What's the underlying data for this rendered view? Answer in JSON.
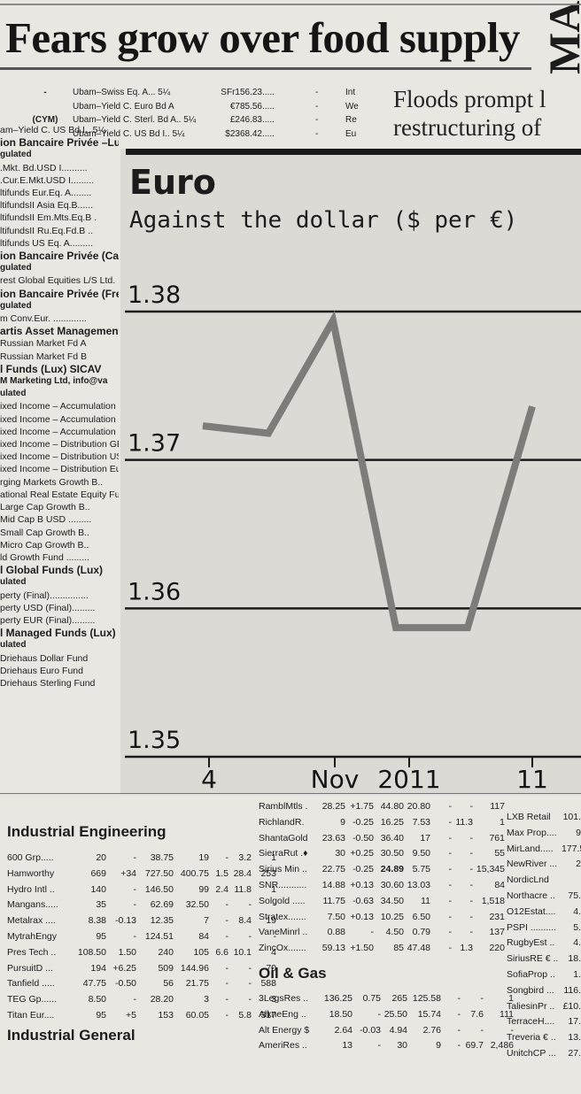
{
  "page": {
    "headline": "Fears grow over food supply",
    "masthead_fragment": "MA",
    "right_headline_line1": "Floods prompt l",
    "right_headline_line2": "restructuring of"
  },
  "funds_top": [
    {
      "dash": "-",
      "name": "Ubam–Swiss Eq. A... 5¼",
      "price": "SFr156.23",
      "dots": ".....",
      "flag": "-",
      "tail": "Int"
    },
    {
      "dash": "",
      "name": "Ubam–Yield C. Euro Bd A",
      "price": "€785.56",
      "dots": ".....",
      "flag": "-",
      "tail": "We"
    },
    {
      "dash": "(CYM)",
      "name": "Ubam–Yield C. Sterl. Bd A.. 5¼",
      "price": "£246.83",
      "dots": ".....",
      "flag": "-",
      "tail": "Re"
    },
    {
      "dash": "",
      "name": "Ubam–Yield C. US Bd I.. 5¼",
      "price": "$2368.42",
      "dots": ".....",
      "flag": "-",
      "tail": "Eu"
    }
  ],
  "funds_left": [
    {
      "t": "am–Yield C. US Bd I.. 5¼",
      "c": ""
    },
    {
      "t": "ion Bancaire Privée –Lu",
      "c": "h"
    },
    {
      "t": "gulated",
      "c": "s"
    },
    {
      "t": ".Mkt. Bd.USD I..........",
      "c": ""
    },
    {
      "t": ".Cur.E.Mkt.USD I.........",
      "c": ""
    },
    {
      "t": "ltifunds Eur.Eq. A........",
      "c": ""
    },
    {
      "t": "ltifundsII Asia Eq.B......",
      "c": ""
    },
    {
      "t": "ltifundsII Em.Mts.Eq.B .",
      "c": ""
    },
    {
      "t": "ltifundsII Ru.Eq.Fd.B ..",
      "c": ""
    },
    {
      "t": "ltifunds US Eq. A.........",
      "c": ""
    },
    {
      "t": "ion Bancaire Privée (Cay",
      "c": "h"
    },
    {
      "t": "gulated",
      "c": "s"
    },
    {
      "t": "rest Global Equities L/S Ltd.",
      "c": ""
    },
    {
      "t": "ion Bancaire Privée (Fre",
      "c": "h"
    },
    {
      "t": "gulated",
      "c": "s"
    },
    {
      "t": "m Conv.Eur. .............",
      "c": ""
    },
    {
      "t": "artis Asset Management",
      "c": "h"
    },
    {
      "t": "Russian Market Fd A",
      "c": ""
    },
    {
      "t": "Russian Market Fd B",
      "c": ""
    },
    {
      "t": "l Funds (Lux) SICAV",
      "c": "h"
    },
    {
      "t": "M Marketing Ltd, info@va",
      "c": "s"
    },
    {
      "t": "ulated",
      "c": "s"
    },
    {
      "t": "ixed Income – Accumulation GBP",
      "c": ""
    },
    {
      "t": "ixed Income – Accumulation USD",
      "c": ""
    },
    {
      "t": "ixed Income – Accumulation Euro",
      "c": ""
    },
    {
      "t": "ixed Income – Distribution GBP ..",
      "c": ""
    },
    {
      "t": "ixed Income – Distribution USD ..",
      "c": ""
    },
    {
      "t": "ixed Income – Distribution Euro..",
      "c": ""
    },
    {
      "t": "rging Markets Growth B..",
      "c": ""
    },
    {
      "t": "ational Real Estate Equity Fund",
      "c": ""
    },
    {
      "t": "Large Cap Growth B..",
      "c": ""
    },
    {
      "t": "Mid Cap B USD .........",
      "c": ""
    },
    {
      "t": "Small Cap Growth B..",
      "c": ""
    },
    {
      "t": "Micro Cap Growth B..",
      "c": ""
    },
    {
      "t": "ld Growth Fund .........",
      "c": ""
    },
    {
      "t": "l Global Funds (Lux)",
      "c": "h"
    },
    {
      "t": "ulated",
      "c": "s"
    },
    {
      "t": "perty (Final)...............",
      "c": ""
    },
    {
      "t": "perty USD (Final).........",
      "c": ""
    },
    {
      "t": "perty EUR (Final).........",
      "c": ""
    },
    {
      "t": "l Managed Funds (Lux)",
      "c": "h"
    },
    {
      "t": "ulated",
      "c": "s"
    },
    {
      "t": "Driehaus Dollar Fund",
      "c": ""
    },
    {
      "t": "Driehaus Euro Fund",
      "c": ""
    },
    {
      "t": "Driehaus Sterling Fund",
      "c": ""
    }
  ],
  "chart_data": {
    "type": "line",
    "title": "Euro",
    "subtitle": "Against the dollar ($ per €)",
    "xlabel": "",
    "ylabel": "",
    "x_tick_labels": [
      "4",
      "Nov",
      "2011",
      "11"
    ],
    "y_tick_labels": [
      "1.38",
      "1.37",
      "1.36",
      "1.35"
    ],
    "ylim": [
      1.35,
      1.38
    ],
    "grid": true,
    "series": [
      {
        "values": [
          1.3723,
          1.3718,
          1.3794,
          1.3587,
          1.3587,
          1.3736
        ]
      }
    ],
    "line_color": "#7d7c79"
  },
  "industrial_engineering": {
    "title": "Industrial Engineering",
    "rows": [
      [
        "600 Grp.....",
        "20",
        "-",
        "38.75",
        "19",
        "-",
        "3.2",
        "1"
      ],
      [
        "Hamworthy",
        "669",
        "+34",
        "727.50",
        "400.75",
        "1.5",
        "28.4",
        "253"
      ],
      [
        "Hydro Intl ..",
        "140",
        "-",
        "146.50",
        "99",
        "2.4",
        "11.8",
        "1"
      ],
      [
        "Mangans.....",
        "35",
        "-",
        "62.69",
        "32.50",
        "-",
        "-",
        "-"
      ],
      [
        "Metalrax ....",
        "8.38",
        "-0.13",
        "12.35",
        "7",
        "-",
        "8.4",
        "19"
      ],
      [
        "MytrahEngy",
        "95",
        "-",
        "124.51",
        "84",
        "-",
        "-",
        "-"
      ],
      [
        "Pres Tech ..",
        "108.50",
        "1.50",
        "240",
        "105",
        "6.6",
        "10.1",
        "4"
      ],
      [
        "PursuitD ...",
        "194",
        "+6.25",
        "509",
        "144.96",
        "-",
        "-",
        "70"
      ],
      [
        "Tanfield .....",
        "47.75",
        "-0.50",
        "56",
        "21.75",
        "-",
        "-",
        "588"
      ],
      [
        "TEG Gp......",
        "8.50",
        "-",
        "28.20",
        "3",
        "-",
        "-",
        "3"
      ],
      [
        "Titan Eur....",
        "95",
        "+5",
        "153",
        "60.05",
        "-",
        "5.8",
        "317"
      ]
    ]
  },
  "industrial_general": {
    "title": "Industrial General"
  },
  "mining": {
    "rows": [
      [
        "RamblMtls .",
        "28.25",
        "+1.75",
        "44.80",
        "20.80",
        "-",
        "-",
        "117"
      ],
      [
        "RichlandR.",
        "9",
        "-0.25",
        "16.25",
        "7.53",
        "-",
        "11.3",
        "1"
      ],
      [
        "ShantaGold",
        "23.63",
        "-0.50",
        "36.40",
        "17",
        "-",
        "-",
        "761"
      ],
      [
        "SierraRut .♦",
        "30",
        "+0.25",
        "30.50",
        "9.50",
        "-",
        "-",
        "55"
      ],
      [
        "Sirius Min ..",
        "22.75",
        "-0.25",
        "24.89",
        "5.75",
        "-",
        "-",
        "15,345"
      ],
      [
        "SNR...........",
        "14.88",
        "+0.13",
        "30.60",
        "13.03",
        "-",
        "-",
        "84"
      ],
      [
        "Solgold .....",
        "11.75",
        "-0.63",
        "34.50",
        "11",
        "-",
        "-",
        "1,518"
      ],
      [
        "Stratex.......",
        "7.50",
        "+0.13",
        "10.25",
        "6.50",
        "-",
        "-",
        "231"
      ],
      [
        "VaneMinrl ..",
        "0.88",
        "-",
        "4.50",
        "0.79",
        "-",
        "-",
        "137"
      ],
      [
        "ZincOx.......",
        "59.13",
        "+1.50",
        "85",
        "47.48",
        "-",
        "1.3",
        "220"
      ]
    ]
  },
  "oil_gas": {
    "title": "Oil & Gas",
    "rows": [
      [
        "3LegsRes ..",
        "136.25",
        "0.75",
        "265",
        "125.58",
        "-",
        "-",
        "1"
      ],
      [
        "AlkneEng ..",
        "18.50",
        "-",
        "25.50",
        "15.74",
        "-",
        "7.6",
        "111"
      ],
      [
        "Alt Energy $",
        "2.64",
        "-0.03",
        "4.94",
        "2.76",
        "-",
        "-",
        "-"
      ],
      [
        "AmeriRes ..",
        "13",
        "-",
        "30",
        "9",
        "-",
        "69.7",
        "2,486"
      ]
    ]
  },
  "property": {
    "rows": [
      [
        "LXB Retail",
        "101."
      ],
      [
        "Max Prop....",
        "9"
      ],
      [
        "MirLand.....",
        "177.5"
      ],
      [
        "NewRiver ...",
        "2"
      ],
      [
        "NordicLnd",
        ""
      ],
      [
        "Northacre ..",
        "75."
      ],
      [
        "O12Estat....",
        "4."
      ],
      [
        "PSPI ..........",
        "5."
      ],
      [
        "RugbyEst ..",
        "4."
      ],
      [
        "SiriusRE € ..",
        "18."
      ],
      [
        "SofiaProp ..",
        "1."
      ],
      [
        "Songbird ...",
        "116."
      ],
      [
        "TaliesinPr ..",
        "£10."
      ],
      [
        "TerraceH....",
        "17."
      ],
      [
        "Treveria € ..",
        "13."
      ],
      [
        "UnitchCP ...",
        "27."
      ]
    ]
  }
}
